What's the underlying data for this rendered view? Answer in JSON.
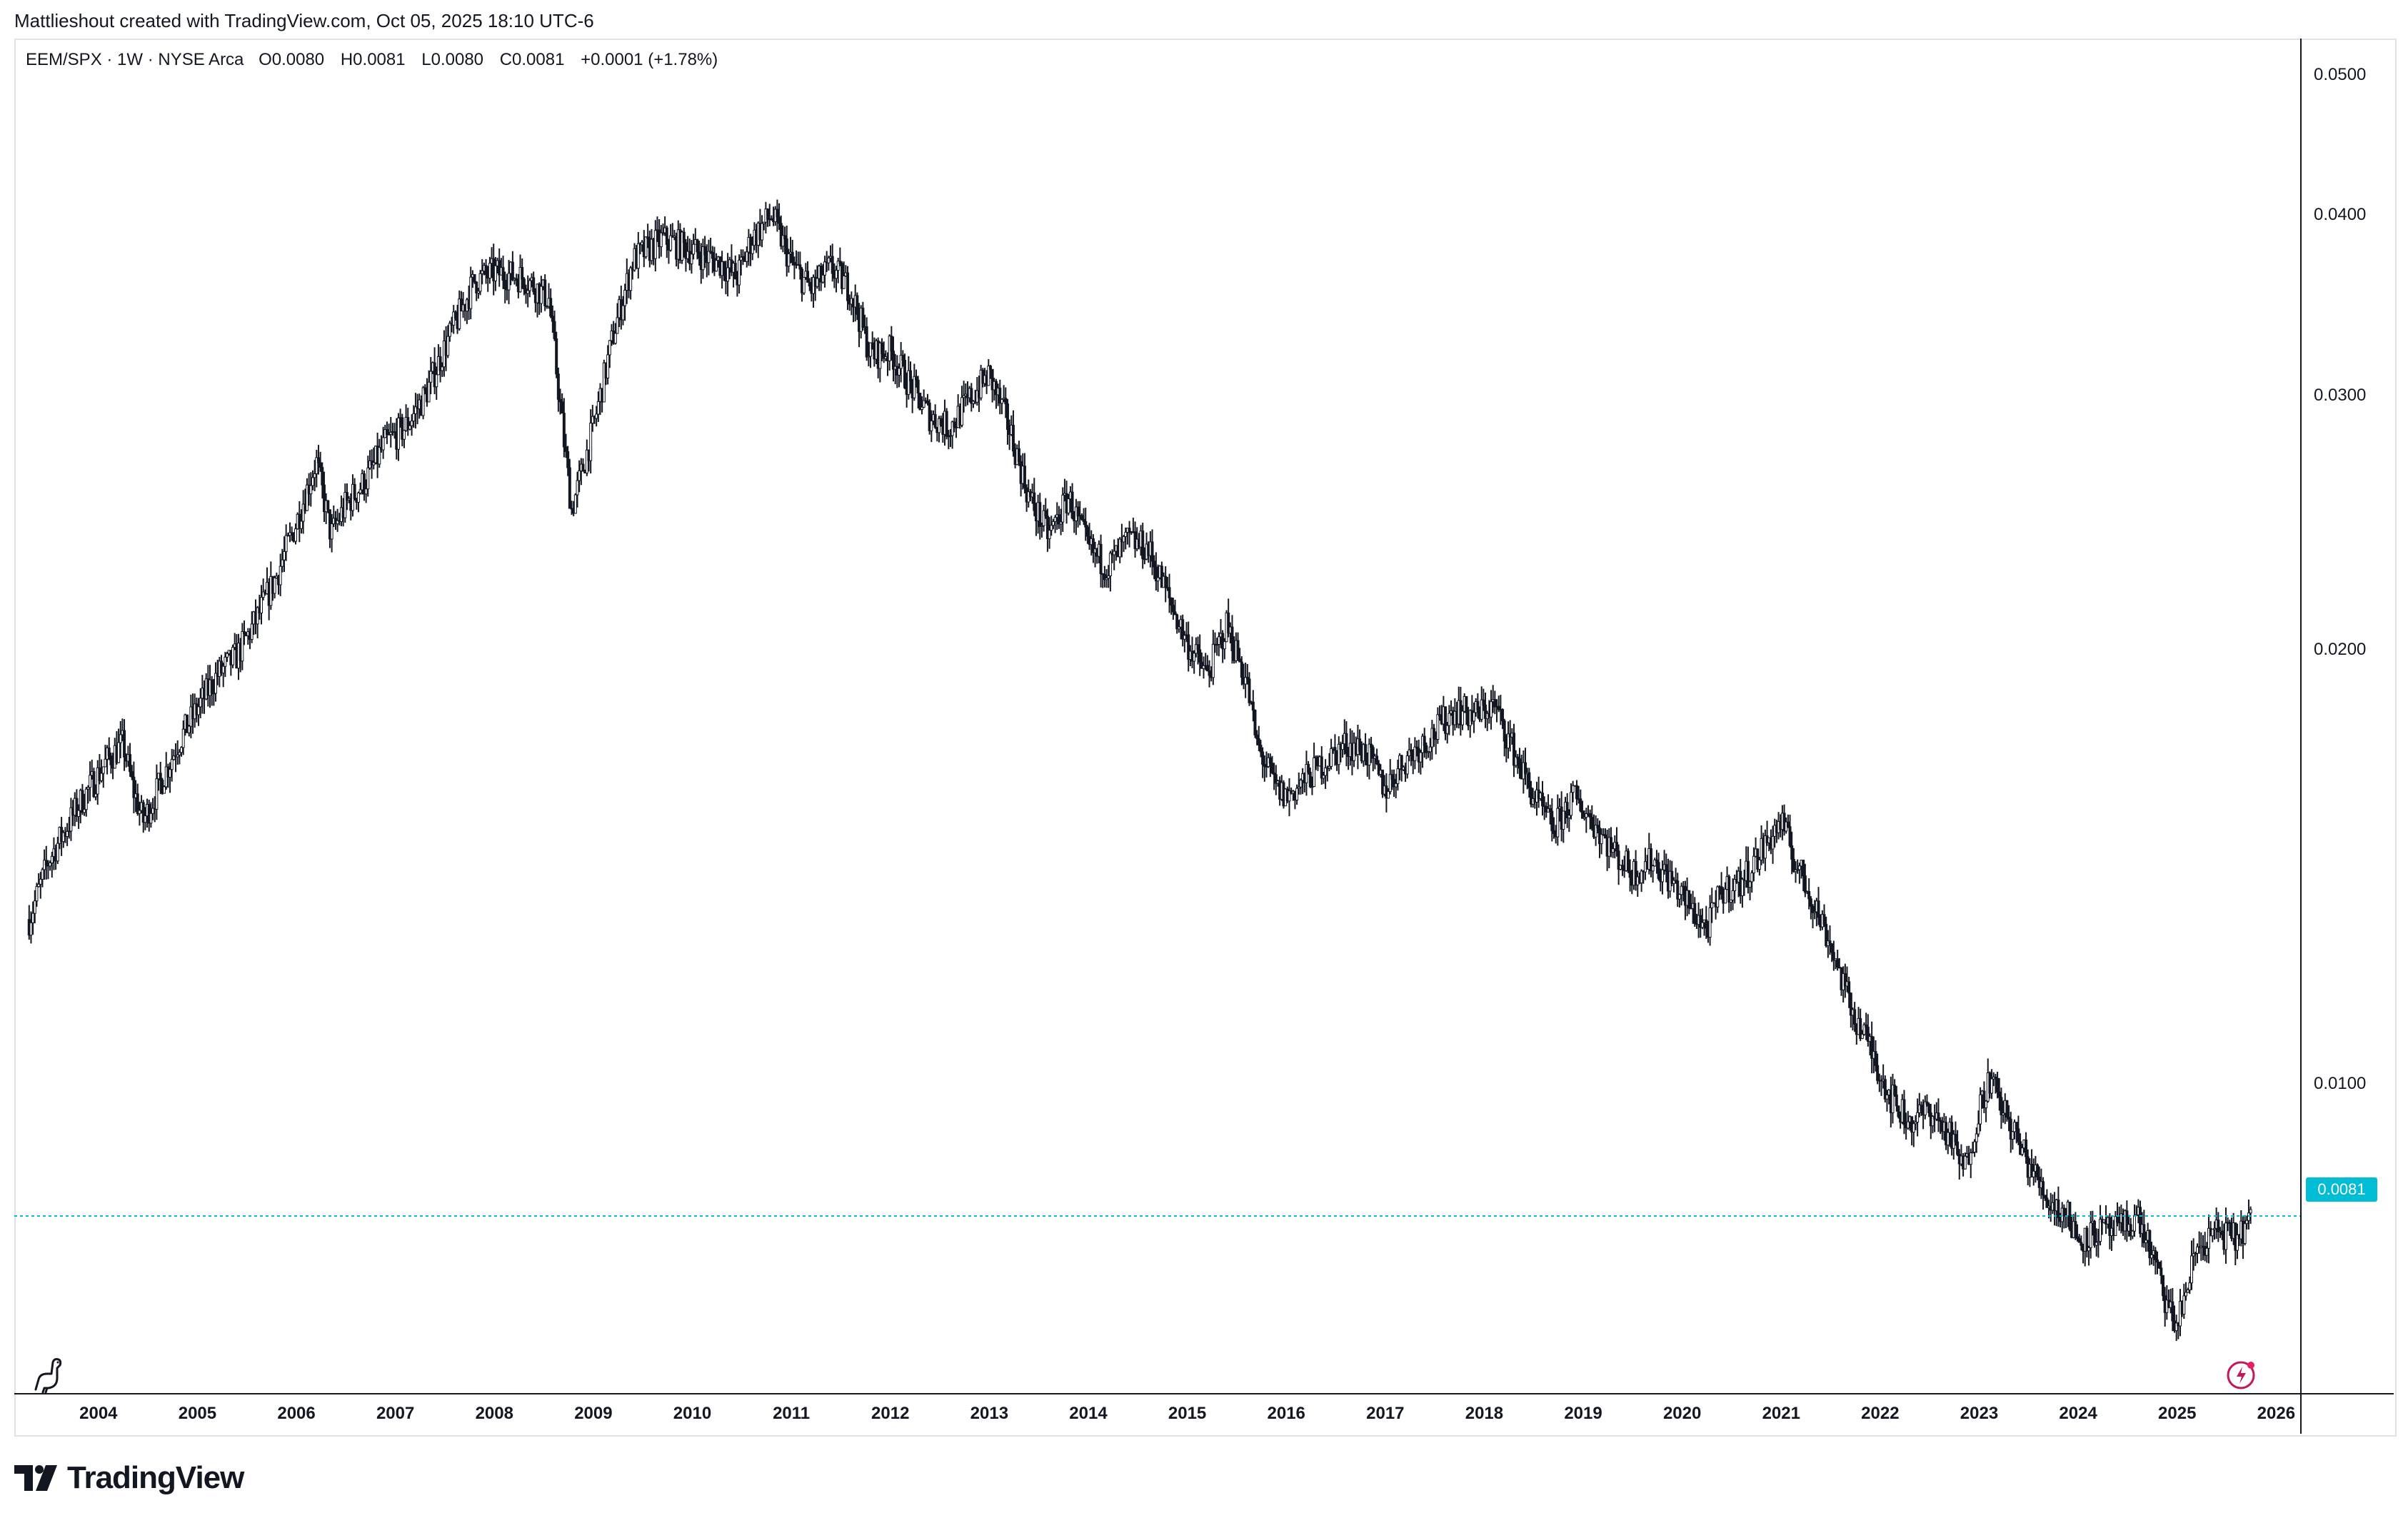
{
  "header": {
    "attribution": "Mattlieshout created with TradingView.com, Oct 05, 2025 18:10 UTC-6"
  },
  "legend": {
    "symbol": "EEM/SPX · 1W · NYSE Arca",
    "open_label": "O",
    "open": "0.0080",
    "high_label": "H",
    "high": "0.0081",
    "low_label": "L",
    "low": "0.0080",
    "close_label": "C",
    "close": "0.0081",
    "change": "+0.0001 (+1.78%)"
  },
  "price_badge": "0.0081",
  "brand": {
    "name": "TradingView"
  },
  "icons": [
    "dino-icon",
    "flash-icon",
    "tradingview-logo-icon"
  ],
  "colors": {
    "candle": "#131722",
    "price_line": "#00bcd4",
    "badge": "#00bcd4",
    "flash_icon": "#c2185b"
  },
  "chart_data": {
    "type": "candlestick",
    "title": "",
    "symbol": "EEM/SPX",
    "interval": "1W",
    "exchange": "NYSE Arca",
    "y_scale": "log",
    "ylim": [
      0.0061,
      0.053
    ],
    "y_ticks": [
      "0.0500",
      "0.0400",
      "0.0300",
      "0.0200",
      "0.0100"
    ],
    "x_ticks": [
      "2004",
      "2005",
      "2006",
      "2007",
      "2008",
      "2009",
      "2010",
      "2011",
      "2012",
      "2013",
      "2014",
      "2015",
      "2016",
      "2017",
      "2018",
      "2019",
      "2020",
      "2021",
      "2022",
      "2023",
      "2024",
      "2025",
      "2026"
    ],
    "xlim": [
      2003.15,
      2026.25
    ],
    "last_price": 0.0081,
    "grid": false,
    "path": {
      "x": [
        2003.3,
        2003.5,
        2003.8,
        2004.1,
        2004.25,
        2004.35,
        2004.45,
        2004.6,
        2004.8,
        2005.0,
        2005.2,
        2005.4,
        2005.6,
        2005.8,
        2006.0,
        2006.2,
        2006.35,
        2006.5,
        2006.7,
        2006.9,
        2007.1,
        2007.3,
        2007.55,
        2007.8,
        2008.0,
        2008.3,
        2008.55,
        2008.7,
        2008.78,
        2008.85,
        2009.0,
        2009.2,
        2009.4,
        2009.7,
        2010.0,
        2010.3,
        2010.45,
        2010.6,
        2010.8,
        2011.0,
        2011.2,
        2011.4,
        2011.6,
        2011.8,
        2012.0,
        2012.2,
        2012.4,
        2012.6,
        2012.8,
        2013.0,
        2013.2,
        2013.4,
        2013.6,
        2013.8,
        2014.0,
        2014.2,
        2014.4,
        2014.6,
        2014.8,
        2015.0,
        2015.2,
        2015.4,
        2015.6,
        2015.7,
        2015.9,
        2016.0,
        2016.3,
        2016.6,
        2016.8,
        2017.0,
        2017.2,
        2017.5,
        2017.7,
        2017.9,
        2018.1,
        2018.3,
        2018.5,
        2018.7,
        2018.9,
        2019.1,
        2019.3,
        2019.5,
        2019.7,
        2019.9,
        2020.1,
        2020.25,
        2020.4,
        2020.6,
        2020.8,
        2021.0,
        2021.15,
        2021.3,
        2021.5,
        2021.7,
        2021.9,
        2022.1,
        2022.3,
        2022.5,
        2022.7,
        2022.85,
        2023.0,
        2023.1,
        2023.3,
        2023.5,
        2023.7,
        2023.9,
        2024.0,
        2024.2,
        2024.4,
        2024.6,
        2024.75,
        2024.9,
        2025.0,
        2025.2,
        2025.4,
        2025.6,
        2025.75
      ],
      "close": [
        0.013,
        0.0143,
        0.0156,
        0.0168,
        0.0172,
        0.016,
        0.0152,
        0.016,
        0.0172,
        0.0182,
        0.0192,
        0.0198,
        0.021,
        0.0225,
        0.0245,
        0.027,
        0.024,
        0.0252,
        0.0262,
        0.0278,
        0.0285,
        0.03,
        0.033,
        0.036,
        0.0365,
        0.0362,
        0.035,
        0.028,
        0.025,
        0.026,
        0.0285,
        0.033,
        0.0372,
        0.0385,
        0.0378,
        0.037,
        0.0362,
        0.0385,
        0.04,
        0.037,
        0.0355,
        0.0368,
        0.0355,
        0.032,
        0.0322,
        0.0305,
        0.029,
        0.0285,
        0.0298,
        0.031,
        0.0285,
        0.0255,
        0.024,
        0.0255,
        0.0235,
        0.0228,
        0.0238,
        0.0235,
        0.0218,
        0.0202,
        0.0192,
        0.0208,
        0.019,
        0.0172,
        0.016,
        0.0158,
        0.0165,
        0.0172,
        0.017,
        0.016,
        0.0168,
        0.0175,
        0.0182,
        0.018,
        0.0183,
        0.017,
        0.0158,
        0.015,
        0.0158,
        0.0152,
        0.0145,
        0.014,
        0.0143,
        0.0138,
        0.0132,
        0.0128,
        0.0136,
        0.0138,
        0.0145,
        0.0152,
        0.0142,
        0.0135,
        0.0125,
        0.0113,
        0.0106,
        0.0098,
        0.0094,
        0.0096,
        0.0092,
        0.0087,
        0.0096,
        0.0101,
        0.0094,
        0.0088,
        0.0083,
        0.0081,
        0.0078,
        0.0079,
        0.0079,
        0.0081,
        0.0076,
        0.007,
        0.0068,
        0.0077,
        0.0079,
        0.0078,
        0.0081
      ]
    }
  }
}
